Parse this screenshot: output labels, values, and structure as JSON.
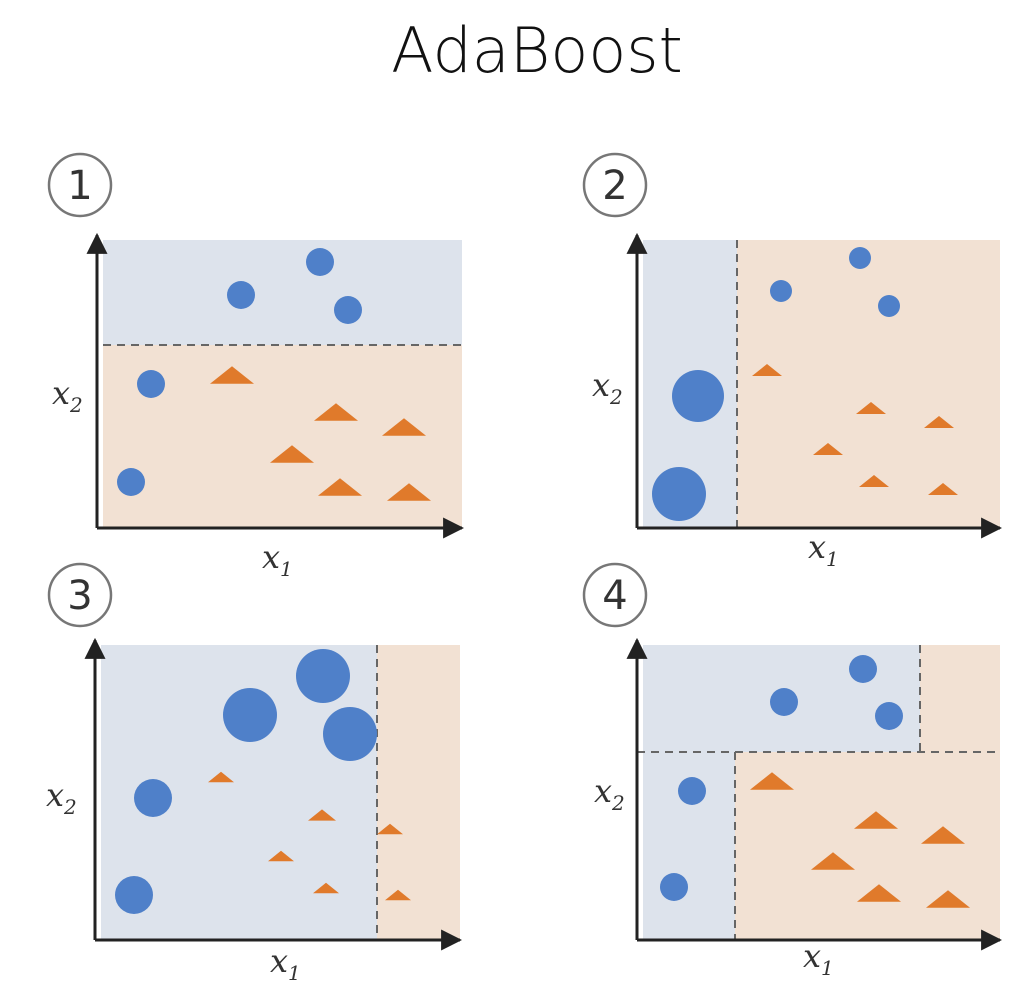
{
  "title": "AdaBoost",
  "panels": [
    {
      "number": "1",
      "x_label": {
        "text": "x",
        "subscript": "1"
      },
      "y_label": {
        "text": "x",
        "subscript": "2"
      }
    },
    {
      "number": "2",
      "x_label": {
        "text": "x",
        "subscript": "1"
      },
      "y_label": {
        "text": "x",
        "subscript": "2"
      }
    },
    {
      "number": "3",
      "x_label": {
        "text": "x",
        "subscript": "1"
      },
      "y_label": {
        "text": "x",
        "subscript": "2"
      }
    },
    {
      "number": "4",
      "x_label": {
        "text": "x",
        "subscript": "1"
      },
      "y_label": {
        "text": "x",
        "subscript": "2"
      }
    }
  ]
}
